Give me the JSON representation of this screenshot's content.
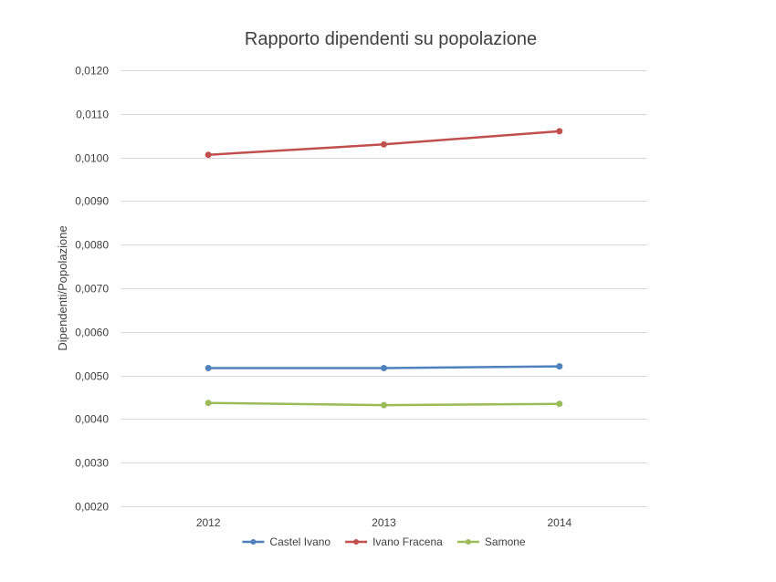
{
  "chart_data": {
    "type": "line",
    "title": "Rapporto dipendenti su popolazione",
    "xlabel": "",
    "ylabel": "Dipendenti/Popolazione",
    "categories": [
      "2012",
      "2013",
      "2014"
    ],
    "ylim": [
      0.002,
      0.012
    ],
    "yticks": [
      0.002,
      0.003,
      0.004,
      0.005,
      0.006,
      0.007,
      0.008,
      0.009,
      0.01,
      0.011,
      0.012
    ],
    "ytick_labels": [
      "0,0020",
      "0,0030",
      "0,0040",
      "0,0050",
      "0,0060",
      "0,0070",
      "0,0080",
      "0,0090",
      "0,0100",
      "0,0110",
      "0,0120"
    ],
    "grid": true,
    "legend_position": "bottom",
    "series": [
      {
        "name": "Castel Ivano",
        "color": "#4f81bd",
        "values": [
          0.00517,
          0.00517,
          0.00521
        ]
      },
      {
        "name": "Ivano Fracena",
        "color": "#c0504d",
        "values": [
          0.01006,
          0.0103,
          0.0106
        ]
      },
      {
        "name": "Samone",
        "color": "#9bbb59",
        "values": [
          0.00437,
          0.00432,
          0.00435
        ]
      }
    ]
  }
}
